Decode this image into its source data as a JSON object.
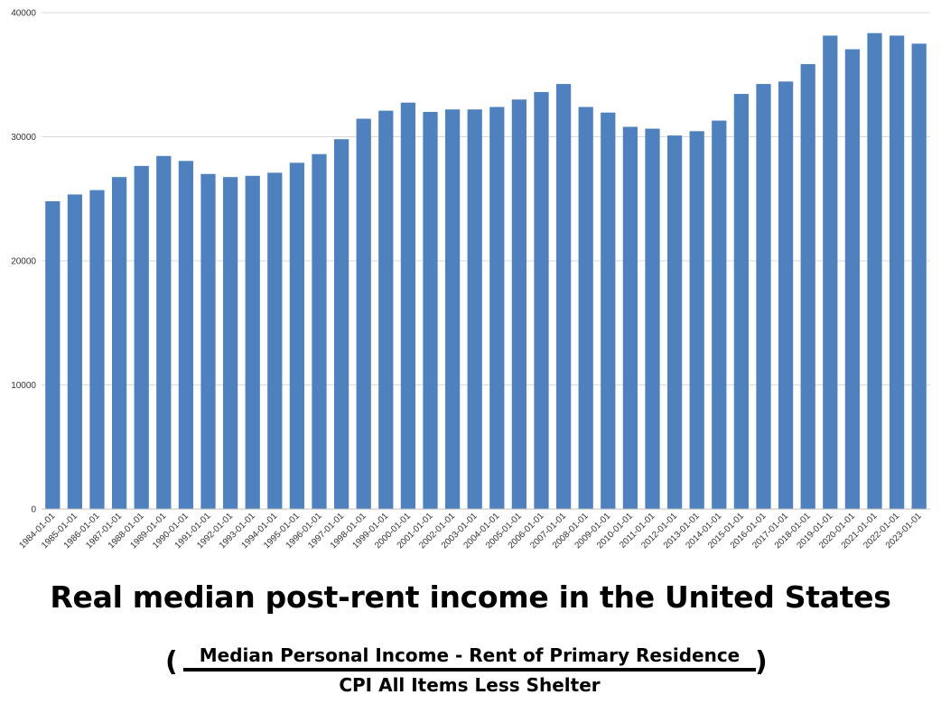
{
  "chart_data": {
    "type": "bar",
    "title": "Real median post-rent income in the United States",
    "formula": {
      "open_paren": "(",
      "close_paren": ")",
      "numerator": "Median Personal Income - Rent of Primary Residence",
      "denominator": "CPI All Items Less Shelter"
    },
    "categories": [
      "1984-01-01",
      "1985-01-01",
      "1986-01-01",
      "1987-01-01",
      "1988-01-01",
      "1989-01-01",
      "1990-01-01",
      "1991-01-01",
      "1992-01-01",
      "1993-01-01",
      "1994-01-01",
      "1995-01-01",
      "1996-01-01",
      "1997-01-01",
      "1998-01-01",
      "1999-01-01",
      "2000-01-01",
      "2001-01-01",
      "2002-01-01",
      "2003-01-01",
      "2004-01-01",
      "2005-01-01",
      "2006-01-01",
      "2007-01-01",
      "2008-01-01",
      "2009-01-01",
      "2010-01-01",
      "2011-01-01",
      "2012-01-01",
      "2013-01-01",
      "2014-01-01",
      "2015-01-01",
      "2016-01-01",
      "2017-01-01",
      "2018-01-01",
      "2019-01-01",
      "2020-01-01",
      "2021-01-01",
      "2022-01-01",
      "2023-01-01"
    ],
    "values": [
      24800,
      25350,
      25700,
      26750,
      27650,
      28450,
      28050,
      27000,
      26750,
      26850,
      27100,
      27900,
      28600,
      29800,
      31450,
      32100,
      32750,
      32000,
      32200,
      32200,
      32400,
      33000,
      33600,
      34250,
      32400,
      31950,
      30800,
      30650,
      30100,
      30450,
      31300,
      33450,
      34250,
      34450,
      35850,
      38150,
      37050,
      38350,
      38150,
      37500
    ],
    "yticks": [
      "0",
      "10000",
      "20000",
      "30000",
      "40000"
    ],
    "ylim": [
      0,
      40000
    ],
    "grid": true,
    "bar_color": "#4e81bd",
    "grid_color": "#d9d9d9"
  }
}
